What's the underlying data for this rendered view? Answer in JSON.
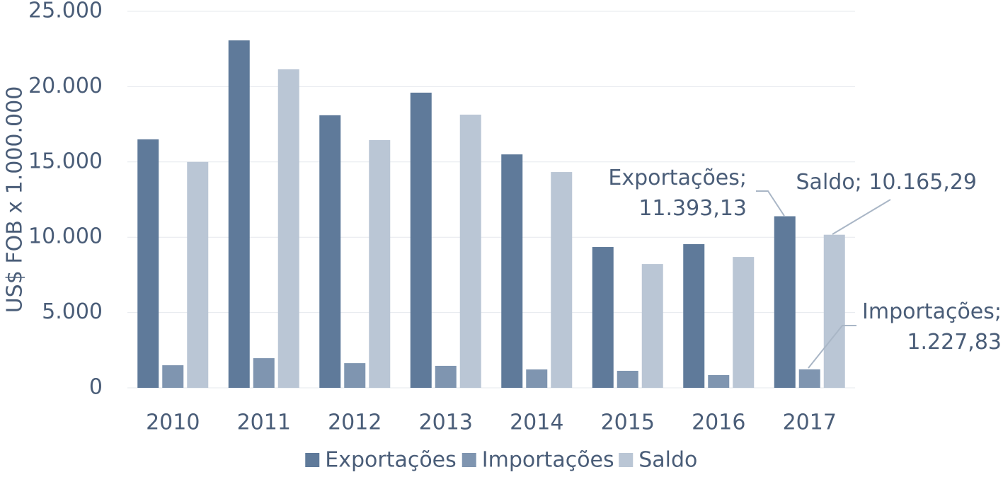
{
  "chart_data": {
    "type": "bar",
    "y_label": "US$ FOB x 1.000.000",
    "categories": [
      "2010",
      "2011",
      "2012",
      "2013",
      "2014",
      "2015",
      "2016",
      "2017"
    ],
    "series": [
      {
        "name": "Exportações",
        "color": "#5f7a9a",
        "values": [
          16500,
          23070,
          18100,
          19600,
          15500,
          9350,
          9540,
          11393.13
        ],
        "value_labels": [
          null,
          null,
          null,
          null,
          null,
          null,
          null,
          "Exportações;\n11.393,13"
        ]
      },
      {
        "name": "Importações",
        "color": "#7f95b0",
        "values": [
          1500,
          1970,
          1640,
          1460,
          1220,
          1130,
          850,
          1227.83
        ],
        "value_labels": [
          null,
          null,
          null,
          null,
          null,
          null,
          null,
          "Importações;\n1.227,83"
        ]
      },
      {
        "name": "Saldo",
        "color": "#bac6d5",
        "values": [
          15000,
          21150,
          16450,
          18140,
          14330,
          8220,
          8690,
          10165.29
        ],
        "value_labels": [
          null,
          null,
          null,
          null,
          null,
          null,
          null,
          "Saldo; 10.165,29"
        ]
      }
    ],
    "ylim": [
      0,
      25000
    ],
    "yticks": [
      0,
      {
        "value": 5000,
        "label": "5.000"
      },
      {
        "value": 10000,
        "label": "10.000"
      },
      {
        "value": 15000,
        "label": "15.000"
      },
      {
        "value": 20000,
        "label": "20.000"
      },
      {
        "value": 25000,
        "label": "25.000"
      }
    ],
    "grid": true,
    "legend": "bottom"
  }
}
